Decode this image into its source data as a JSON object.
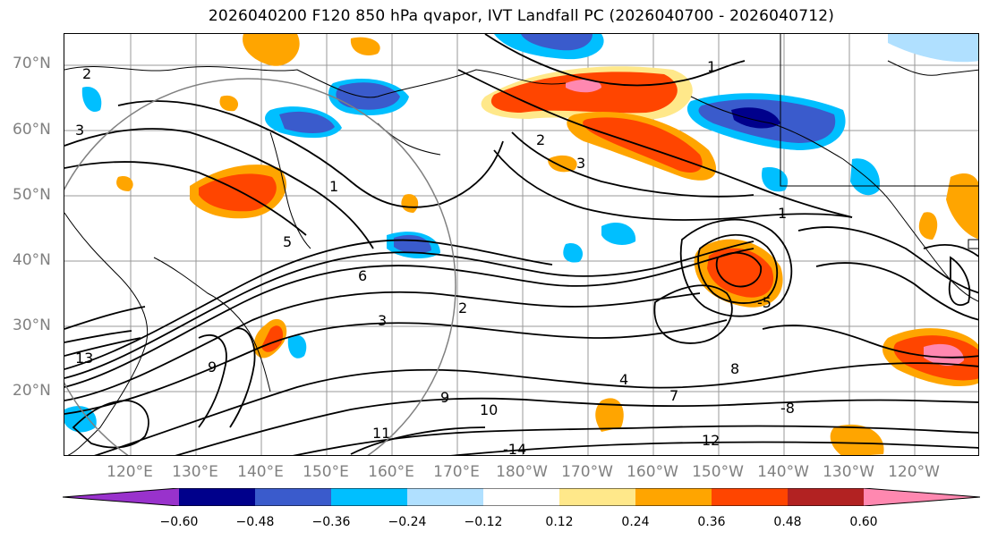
{
  "title": "2026040200 F120 850 hPa qvapor, IVT Landfall PC (2026040700 - 2026040712)",
  "lat_labels": [
    "70°N",
    "60°N",
    "50°N",
    "40°N",
    "30°N",
    "20°N"
  ],
  "lon_labels": [
    "120°E",
    "130°E",
    "140°E",
    "150°E",
    "160°E",
    "170°E",
    "180°W",
    "170°W",
    "160°W",
    "150°W",
    "140°W",
    "130°W",
    "120°W"
  ],
  "contour_labels": [
    "1",
    "2",
    "3",
    "1",
    "2",
    "3",
    "5",
    "6",
    "9",
    "10",
    "11",
    "12",
    "13",
    "-14",
    "4",
    "7",
    "8",
    "-8",
    "9",
    "-5",
    "1",
    "2",
    "3"
  ],
  "colorbar": {
    "ticks": [
      "−0.60",
      "−0.48",
      "−0.36",
      "−0.24",
      "−0.12",
      "0.12",
      "0.24",
      "0.36",
      "0.48",
      "0.60"
    ],
    "colors": [
      "#9932cc",
      "#00008b",
      "#3a5bcc",
      "#00bfff",
      "#b0e0ff",
      "#ffffff",
      "#ffe88a",
      "#ffa500",
      "#ff4500",
      "#b22222",
      "#ff88b0",
      "#ff88b0"
    ]
  },
  "colors": {
    "positive_light": "#ffe88a",
    "positive_mid": "#ffa500",
    "positive_strong": "#ff4500",
    "positive_max": "#ff88b0",
    "negative_light": "#b0e0ff",
    "negative_mid": "#00bfff",
    "negative_strong": "#3a5bcc",
    "negative_max": "#00008b"
  }
}
